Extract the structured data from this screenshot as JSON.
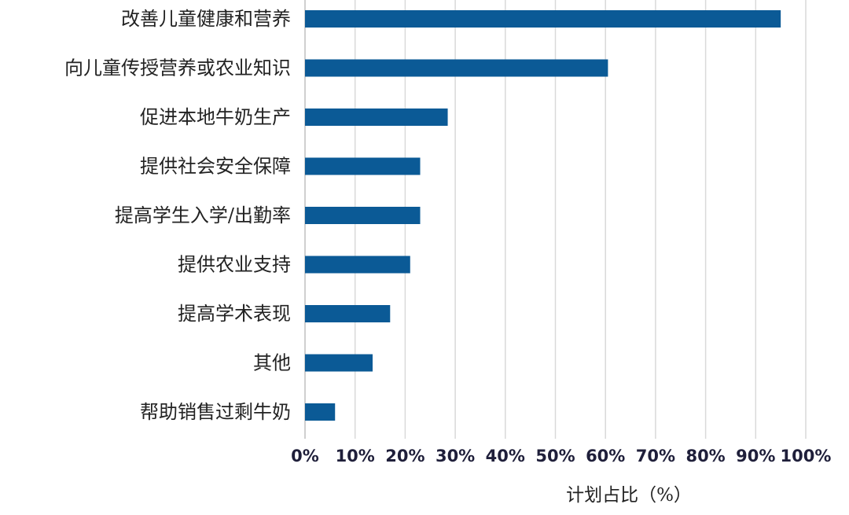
{
  "chart_data": {
    "type": "bar",
    "orientation": "horizontal",
    "categories": [
      "改善儿童健康和营养",
      "向儿童传授营养或农业知识",
      "促进本地牛奶生产",
      "提供社会安全保障",
      "提高学生入学/出勤率",
      "提供农业支持",
      "提高学术表现",
      "其他",
      "帮助销售过剩牛奶"
    ],
    "values": [
      95,
      60.5,
      28.5,
      23,
      23,
      21,
      17,
      13.5,
      6
    ],
    "xlabel": "计划占比（%）",
    "ylabel": "",
    "xlim": [
      0,
      100
    ],
    "ticks": [
      0,
      10,
      20,
      30,
      40,
      50,
      60,
      70,
      80,
      90,
      100
    ],
    "tick_labels": [
      "0%",
      "10%",
      "20%",
      "30%",
      "40%",
      "50%",
      "60%",
      "70%",
      "80%",
      "90%",
      "100%"
    ],
    "grid": true,
    "bar_color": "#0b5a96"
  }
}
